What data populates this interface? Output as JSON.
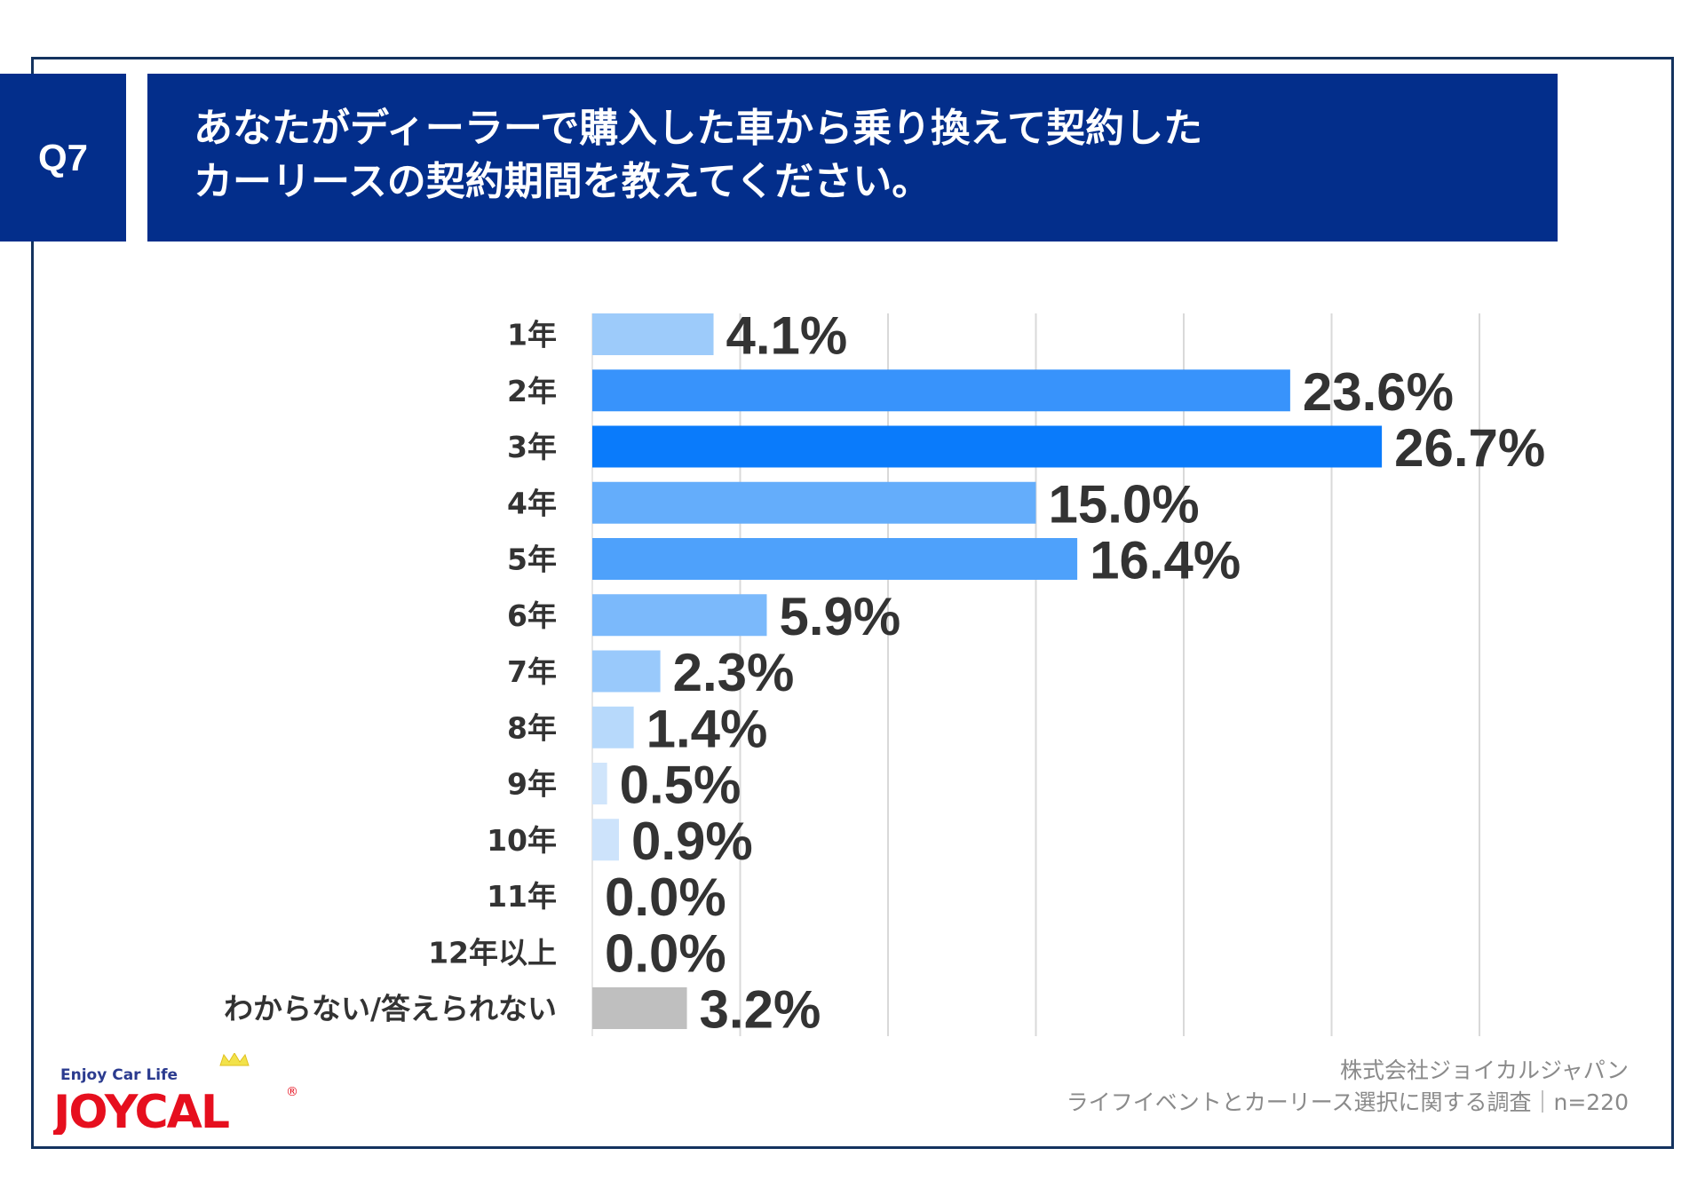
{
  "header": {
    "question_no": "Q7",
    "title_lines": [
      "あなたがディーラーで購入した車から乗り換えて契約した",
      "カーリースの契約期間を教えてください。"
    ]
  },
  "chart_data": {
    "type": "bar",
    "orientation": "horizontal",
    "title": "あなたがディーラーで購入した車から乗り換えて契約したカーリースの契約期間を教えてください。",
    "xlabel": "",
    "ylabel": "",
    "xlim": [
      0,
      30
    ],
    "grid": true,
    "grid_step": 5,
    "categories": [
      "1年",
      "2年",
      "3年",
      "4年",
      "5年",
      "6年",
      "7年",
      "8年",
      "9年",
      "10年",
      "11年",
      "12年以上",
      "わからない/答えられない"
    ],
    "values": [
      4.1,
      23.6,
      26.7,
      15.0,
      16.4,
      5.9,
      2.3,
      1.4,
      0.5,
      0.9,
      0.0,
      0.0,
      3.2
    ],
    "labels": [
      "4.1%",
      "23.6%",
      "26.7%",
      "15.0%",
      "16.4%",
      "5.9%",
      "2.3%",
      "1.4%",
      "0.5%",
      "0.9%",
      "0.0%",
      "0.0%",
      "3.2%"
    ],
    "colors": [
      "#9dcbfa",
      "#3893fb",
      "#0a7bfb",
      "#64adfb",
      "#4ea1fb",
      "#7bb9fb",
      "#99c9fb",
      "#b7d9fb",
      "#d0e5fb",
      "#cde3fb",
      "#d8e8fb",
      "#d8e8fb",
      "#bfbfbf"
    ]
  },
  "footer": {
    "company": "株式会社ジョイカルジャパン",
    "survey": "ライフイベントとカーリース選択に関する調査｜n=220"
  },
  "logo": {
    "tagline": "Enjoy Car Life",
    "brand": "JOYCAL",
    "registered": "®"
  },
  "colors": {
    "header_bg": "#032e8b",
    "frame": "#14335f",
    "logo_red": "#e60f1e",
    "logo_navy": "#2b3b8f"
  }
}
